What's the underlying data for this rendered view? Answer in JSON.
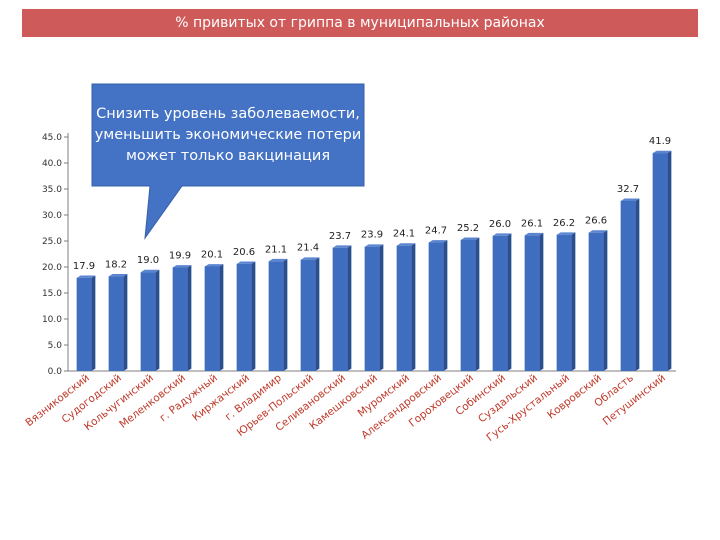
{
  "header": {
    "title": "% привитых от гриппа в муниципальных районах"
  },
  "callout": {
    "text": "Снизить уровень заболеваемости, уменьшить экономические потери может только вакцинация"
  },
  "colors": {
    "bar": "#3f6ec0",
    "bar_side": "#2a4e90",
    "title_bg": "#cf5a5a",
    "callout_bg": "#4472c4",
    "xlabel": "#c0392b"
  },
  "chart_data": {
    "type": "bar",
    "title": "",
    "xlabel": "",
    "ylabel": "",
    "ylim": [
      0,
      45
    ],
    "yticks": [
      "0.0",
      "5.0",
      "10.0",
      "15.0",
      "20.0",
      "25.0",
      "30.0",
      "35.0",
      "40.0",
      "45.0"
    ],
    "categories": [
      "Вязниковский",
      "Судогодский",
      "Кольчугинский",
      "Меленковский",
      "г. Радужный",
      "Киржачский",
      "г. Владимир",
      "Юрьев-Польский",
      "Селивановский",
      "Камешковский",
      "Муромский",
      "Александровский",
      "Гороховецкий",
      "Собинский",
      "Суздальский",
      "Гусь-Хрустальный",
      "Ковровский",
      "Область",
      "Петушинский"
    ],
    "values": [
      17.9,
      18.2,
      19.0,
      19.9,
      20.1,
      20.6,
      21.1,
      21.4,
      23.7,
      23.9,
      24.1,
      24.7,
      25.2,
      26.0,
      26.1,
      26.2,
      26.6,
      32.7,
      41.9
    ],
    "labels": [
      "17.9",
      "18.2",
      "19.0",
      "19.9",
      "20.1",
      "20.6",
      "21.1",
      "21.4",
      "23.7",
      "23.9",
      "24.1",
      "24.7",
      "25.2",
      "26.0",
      "26.1",
      "26.2",
      "26.6",
      "32.7",
      "41.9"
    ],
    "grid": false,
    "legend": "none"
  }
}
